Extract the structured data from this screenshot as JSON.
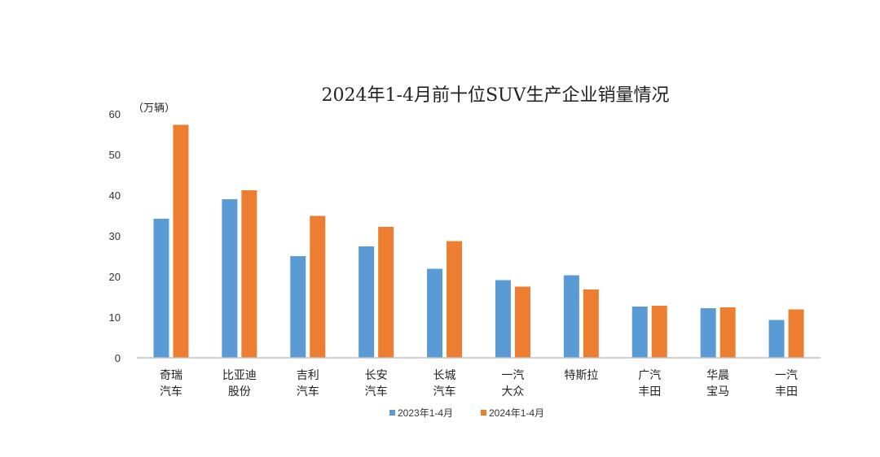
{
  "chart_data": {
    "type": "bar",
    "title": "2024年1-4月前十位SUV生产企业销量情况",
    "ylabel": "（万辆）",
    "ylim": [
      0,
      60
    ],
    "yticks": [
      0,
      10,
      20,
      30,
      40,
      50,
      60
    ],
    "categories": [
      [
        "奇瑞",
        "汽车"
      ],
      [
        "比亚迪",
        "股份"
      ],
      [
        "吉利",
        "汽车"
      ],
      [
        "长安",
        "汽车"
      ],
      [
        "长城",
        "汽车"
      ],
      [
        "一汽",
        "大众"
      ],
      [
        "特斯拉"
      ],
      [
        "广汽",
        "丰田"
      ],
      [
        "华晨",
        "宝马"
      ],
      [
        "一汽",
        "丰田"
      ]
    ],
    "series": [
      {
        "name": "2023年1-4月",
        "color": "#5b9bd5",
        "values": [
          34.2,
          39.0,
          25.0,
          27.4,
          21.9,
          19.1,
          20.3,
          12.6,
          12.2,
          9.3
        ]
      },
      {
        "name": "2024年1-4月",
        "color": "#ed7d31",
        "values": [
          57.3,
          41.2,
          34.9,
          32.2,
          28.7,
          17.5,
          16.8,
          12.8,
          12.4,
          11.9
        ]
      }
    ],
    "grid": false,
    "legend_position": "bottom"
  }
}
